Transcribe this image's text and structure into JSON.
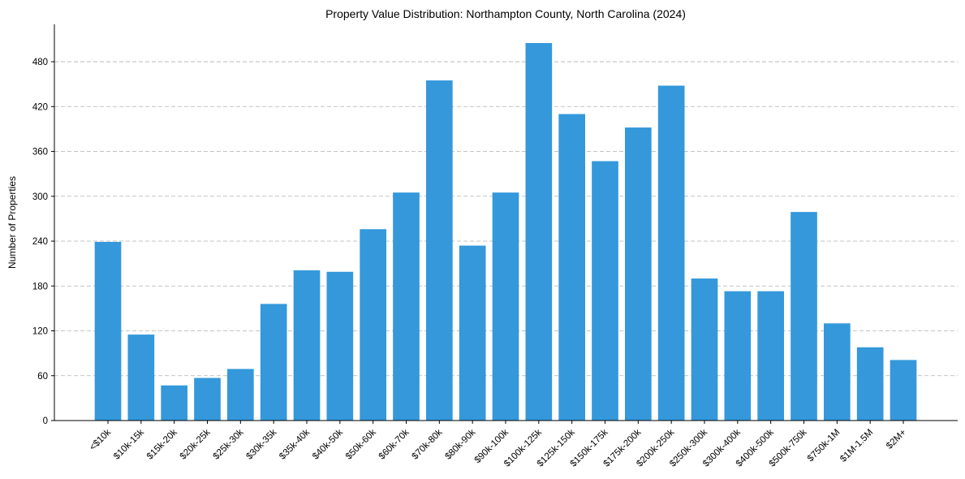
{
  "chart_data": {
    "type": "bar",
    "title": "Property Value Distribution: Northampton County, North Carolina (2024)",
    "xlabel": "",
    "ylabel": "Number of Properties",
    "ylim": [
      0,
      530
    ],
    "yticks": [
      0,
      60,
      120,
      180,
      240,
      300,
      360,
      420,
      480
    ],
    "grid": "y-dashed",
    "bar_color": "#3498db",
    "categories": [
      "<$10k",
      "$10k-15k",
      "$15k-20k",
      "$20k-25k",
      "$25k-30k",
      "$30k-35k",
      "$35k-40k",
      "$40k-50k",
      "$50k-60k",
      "$60k-70k",
      "$70k-80k",
      "$80k-90k",
      "$90k-100k",
      "$100k-125k",
      "$125k-150k",
      "$150k-175k",
      "$175k-200k",
      "$200k-250k",
      "$250k-300k",
      "$300k-400k",
      "$400k-500k",
      "$500k-750k",
      "$750k-1M",
      "$1M-1.5M",
      "$2M+"
    ],
    "values": [
      239,
      115,
      47,
      57,
      69,
      156,
      201,
      199,
      256,
      305,
      455,
      234,
      305,
      505,
      410,
      347,
      392,
      448,
      190,
      173,
      173,
      279,
      130,
      98,
      81
    ]
  }
}
